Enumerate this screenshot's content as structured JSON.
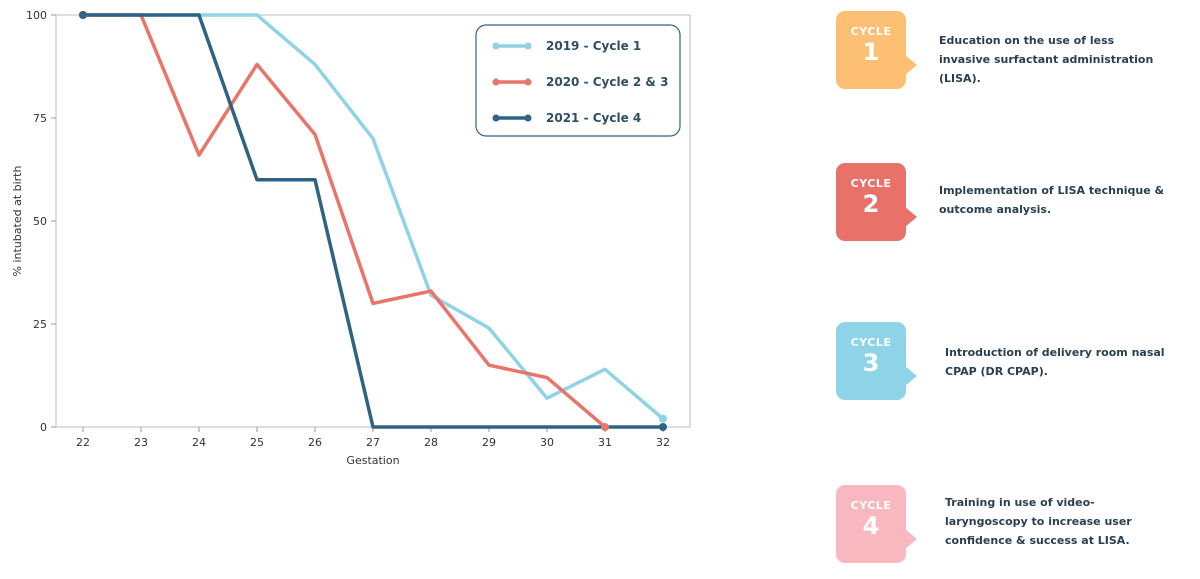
{
  "chart_data": {
    "type": "line",
    "xlabel": "Gestation",
    "ylabel": "% intubated at birth",
    "x": [
      22,
      23,
      24,
      25,
      26,
      27,
      28,
      29,
      30,
      31,
      32
    ],
    "xlim": [
      22,
      32
    ],
    "ylim": [
      0,
      100
    ],
    "yticks": [
      0,
      25,
      50,
      75,
      100
    ],
    "grid": true,
    "legend_position": "top-right",
    "series": [
      {
        "name": "2019 - Cycle 1",
        "color": "#8fd3e6",
        "marker": "circle",
        "values": [
          100,
          100,
          100,
          100,
          88,
          70,
          32,
          24,
          7,
          14,
          2
        ]
      },
      {
        "name": "2020 - Cycle 2 & 3",
        "color": "#e8746a",
        "marker": "circle",
        "values": [
          100,
          100,
          66,
          88,
          71,
          30,
          33,
          15,
          12,
          0,
          null
        ]
      },
      {
        "name": "2021 - Cycle 4",
        "color": "#2f6384",
        "marker": "circle",
        "values": [
          100,
          100,
          100,
          60,
          60,
          0,
          0,
          0,
          0,
          0,
          0
        ]
      }
    ]
  },
  "cycles": [
    {
      "word": "CYCLE",
      "number": "1",
      "color": "#fdbf73",
      "text": "Education on the use of less invasive surfactant administration (LISA)."
    },
    {
      "word": "CYCLE",
      "number": "2",
      "color": "#e8716a",
      "text": "Implementation of LISA technique & outcome analysis."
    },
    {
      "word": "CYCLE",
      "number": "3",
      "color": "#8fd3e8",
      "text": "Introduction of delivery room nasal CPAP (DR CPAP)."
    },
    {
      "word": "CYCLE",
      "number": "4",
      "color": "#f9b8c0",
      "text": "Training in use of video-laryngoscopy to increase user confidence & success at LISA."
    }
  ]
}
